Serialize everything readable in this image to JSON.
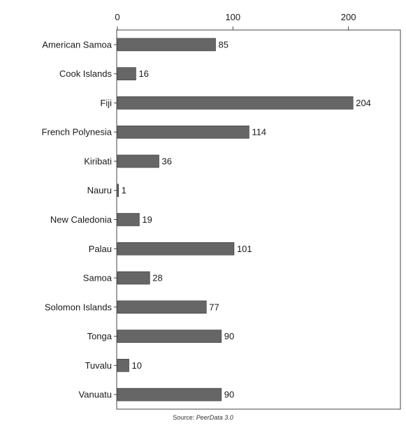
{
  "chart_data": {
    "type": "bar",
    "orientation": "horizontal",
    "categories": [
      "American Samoa",
      "Cook Islands",
      "Fiji",
      "French Polynesia",
      "Kiribati",
      "Nauru",
      "New Caledonia",
      "Palau",
      "Samoa",
      "Solomon Islands",
      "Tonga",
      "Tuvalu",
      "Vanuatu"
    ],
    "values": [
      85,
      16,
      204,
      114,
      36,
      1,
      19,
      101,
      28,
      77,
      90,
      10,
      90
    ],
    "x_ticks": [
      0,
      100,
      200
    ],
    "xlim": [
      0,
      245
    ],
    "x_axis_position": "top",
    "grid": false,
    "bar_color": "#666666"
  },
  "source": {
    "prefix": "Source:",
    "name": "PeerData 3.0"
  }
}
